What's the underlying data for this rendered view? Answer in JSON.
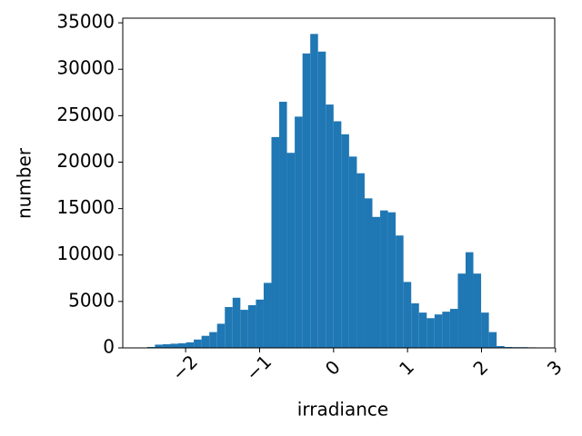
{
  "chart_data": {
    "type": "histogram",
    "x_label": "irradiance",
    "y_label": "number",
    "color": "#1f77b4",
    "bins": [
      -2.52,
      -2.415,
      -2.31,
      -2.205,
      -2.1,
      -1.995,
      -1.89,
      -1.785,
      -1.68,
      -1.575,
      -1.47,
      -1.365,
      -1.26,
      -1.155,
      -1.05,
      -0.945,
      -0.84,
      -0.735,
      -0.63,
      -0.525,
      -0.42,
      -0.315,
      -0.21,
      -0.105,
      0,
      0.105,
      0.21,
      0.315,
      0.42,
      0.525,
      0.63,
      0.735,
      0.84,
      0.945,
      1.05,
      1.155,
      1.26,
      1.365,
      1.47,
      1.575,
      1.68,
      1.785,
      1.89,
      1.995,
      2.1,
      2.205,
      2.31,
      2.415,
      2.52,
      2.625,
      2.73,
      2.835,
      2.94
    ],
    "values": [
      100,
      350,
      400,
      450,
      500,
      600,
      900,
      1300,
      1700,
      2600,
      4400,
      5400,
      4100,
      4600,
      5200,
      7000,
      22700,
      26500,
      21000,
      24900,
      31700,
      33800,
      31900,
      26200,
      24400,
      23000,
      20600,
      18800,
      16100,
      14100,
      14800,
      14600,
      12100,
      7100,
      4800,
      3800,
      3200,
      3600,
      3900,
      4200,
      8000,
      10300,
      8000,
      3800,
      1700,
      200,
      100,
      80,
      80,
      60,
      40,
      20
    ],
    "xlim": [
      -2.85,
      2.99
    ],
    "xticks": [
      {
        "value": -2,
        "label": "−2"
      },
      {
        "value": -1,
        "label": "−1"
      },
      0,
      1,
      2,
      3
    ],
    "ylim": [
      0,
      35500
    ],
    "yticks": [
      0,
      5000,
      10000,
      15000,
      20000,
      25000,
      30000,
      35000
    ]
  }
}
